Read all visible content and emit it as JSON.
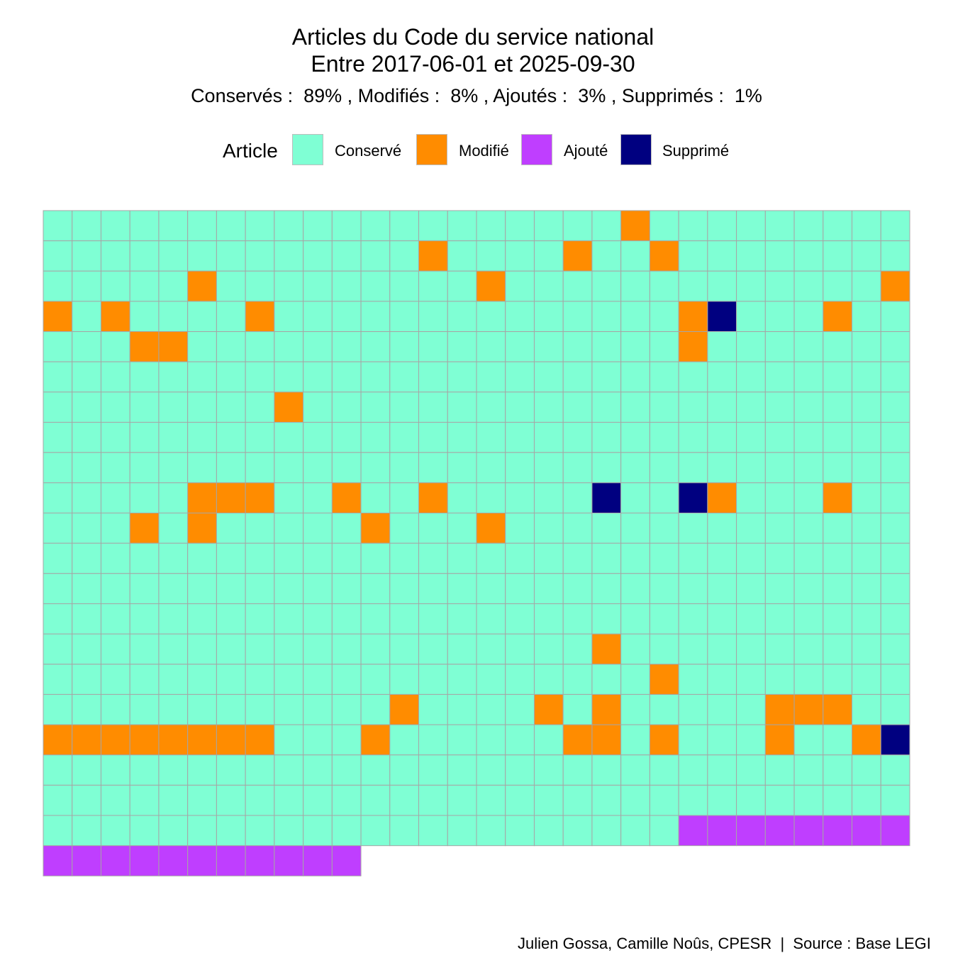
{
  "chart_data": {
    "type": "waffle",
    "title": [
      "Articles du Code du service national",
      "Entre 2017-06-01 et 2025-09-30"
    ],
    "subtitle": "Conservés :  89% , Modifiés :  8% , Ajoutés :  3% , Supprimés :  1%",
    "legend": {
      "title": "Article",
      "placement": "top",
      "entries": [
        {
          "key": "C",
          "label": "Conservé",
          "color": "#7FFFD4"
        },
        {
          "key": "M",
          "label": "Modifié",
          "color": "#FF8C00"
        },
        {
          "key": "A",
          "label": "Ajouté",
          "color": "#BF3EFF"
        },
        {
          "key": "S",
          "label": "Supprimé",
          "color": "#000080"
        }
      ]
    },
    "columns": 30,
    "grid_color": "#a6a6a6",
    "rows": [
      "CCCCCCCCCCCCCCCCCCCCMCCCCCCCCC",
      "CCCCCCCCCCCCCMCCCCMCCMCCCCCCCC",
      "CCCCCMCCCCCCCCCMCCCCCCCCCCCCCM",
      "MCMCCCCMCCCCCCCCCCCCCCMSCCCMCC",
      "CCCMMCCCCCCCCCCCCCCCCCMCCCCCCC",
      "CCCCCCCCCCCCCCCCCCCCCCCCCCCCCC",
      "CCCCCCCCMCCCCCCCCCCCCCCCCCCCCC",
      "CCCCCCCCCCCCCCCCCCCCCCCCCCCCCC",
      "CCCCCCCCCCCCCCCCCCCCCCCCCCCCCC",
      "CCCCCMMMCCMCCMCCCCCSCCSMCCCMCC",
      "CCCMCMCCCCCMCCCMCCCCCCCCCCCCCC",
      "CCCCCCCCCCCCCCCCCCCCCCCCCCCCCC",
      "CCCCCCCCCCCCCCCCCCCCCCCCCCCCCC",
      "CCCCCCCCCCCCCCCCCCCCCCCCCCCCCC",
      "CCCCCCCCCCCCCCCCCCCMCCCCCCCCCC",
      "CCCCCCCCCCCCCCCCCCCCCMCCCCCCCC",
      "CCCCCCCCCCCCMCCCCMCMCCCCCMMMCC",
      "MMMMMMMMCCCMCCCCCCMMCMCCCMCCMS",
      "CCCCCCCCCCCCCCCCCCCCCCCCCCCCCC",
      "CCCCCCCCCCCCCCCCCCCCCCCCCCCCCC",
      "CCCCCCCCCCCCCCCCCCCCCCAAAAAAAA",
      "AAAAAAAAAAA"
    ]
  },
  "caption": "Julien Gossa, Camille Noûs, CPESR  |  Source : Base LEGI"
}
